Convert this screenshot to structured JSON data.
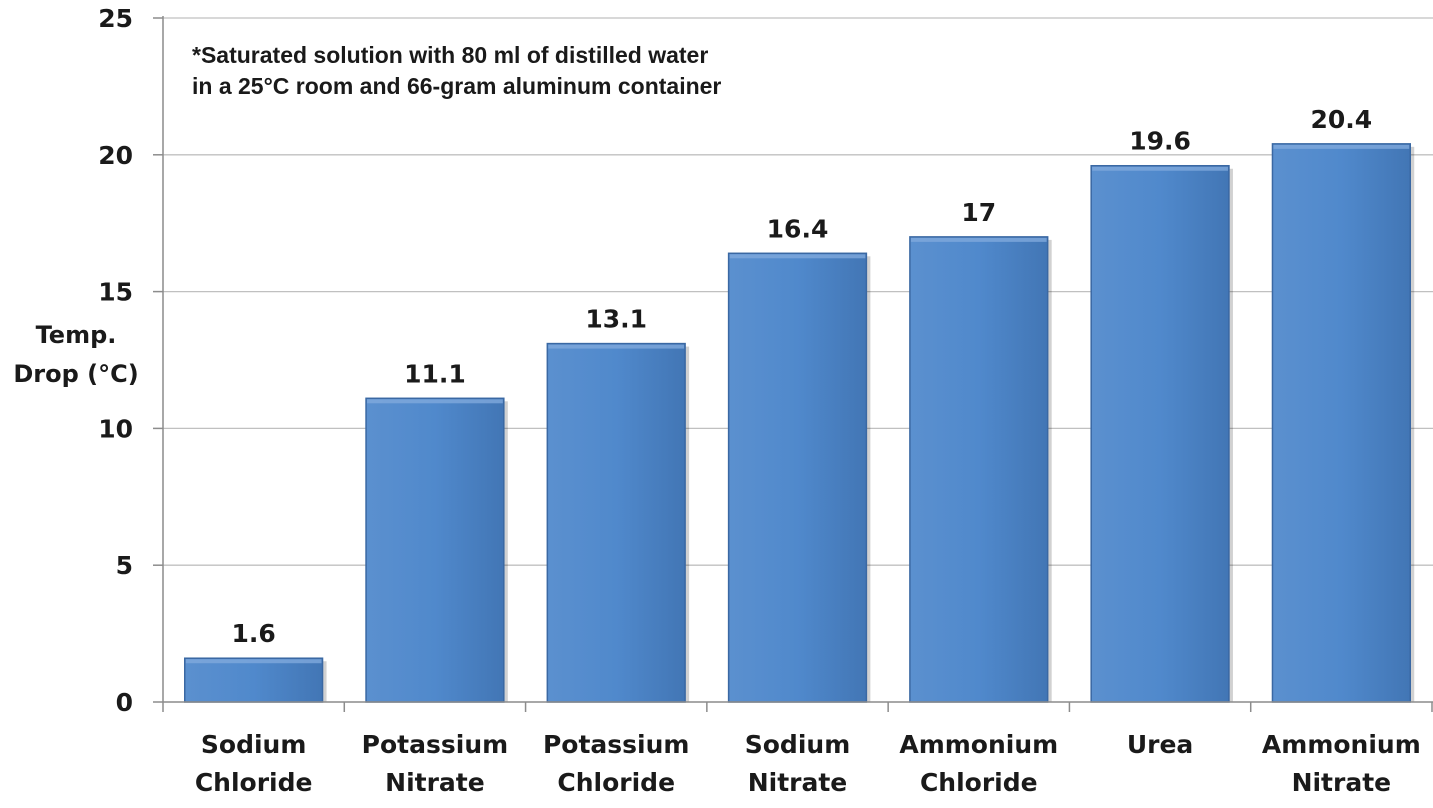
{
  "chart_data": {
    "type": "bar",
    "categories": [
      [
        "Sodium",
        "Chloride"
      ],
      [
        "Potassium",
        "Nitrate"
      ],
      [
        "Potassium",
        "Chloride"
      ],
      [
        "Sodium",
        "Nitrate"
      ],
      [
        "Ammonium",
        "Chloride"
      ],
      [
        "Urea"
      ],
      [
        "Ammonium",
        "Nitrate"
      ]
    ],
    "values": [
      1.6,
      11.1,
      13.1,
      16.4,
      17,
      19.6,
      20.4
    ],
    "value_labels": [
      "1.6",
      "11.1",
      "13.1",
      "16.4",
      "17",
      "19.6",
      "20.4"
    ],
    "ylabel": [
      "Temp.",
      "Drop (°C)"
    ],
    "ylim": [
      0,
      25
    ],
    "yticks": [
      0,
      5,
      10,
      15,
      20,
      25
    ],
    "annotation": [
      "*Saturated solution with 80 ml of distilled water",
      "in a 25°C room and 66-gram aluminum container"
    ],
    "grid": true,
    "legend": "none",
    "colors": {
      "bar": "#4f86c6",
      "bar_edge": "#3a68a3",
      "grid": "#c0c0c0",
      "axis": "#8c8c8c"
    }
  }
}
